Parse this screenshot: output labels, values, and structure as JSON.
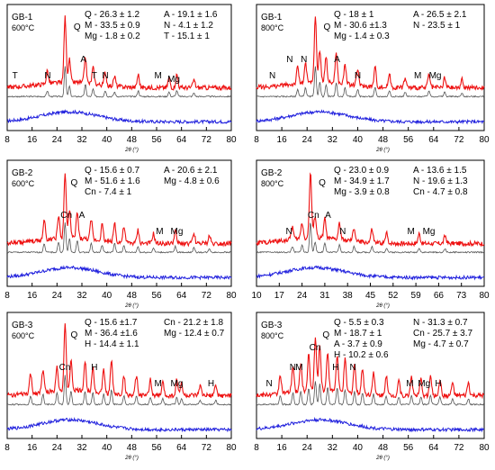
{
  "chart_data": [
    {
      "type": "line",
      "title": "GB-1",
      "subtitle": "600°C",
      "xlabel": "2θ (°)",
      "xticks": [
        8,
        16,
        24,
        32,
        40,
        48,
        56,
        64,
        72,
        80
      ],
      "xlim": [
        8,
        80
      ],
      "composition": [
        "Q - 26.3 ± 1.2",
        "A - 19.1 ± 1.6",
        "M - 33.5 ± 0.9",
        "N - 4.1 ± 1.2",
        "Mg - 1.8 ± 0.2",
        "T - 15.1 ± 1"
      ],
      "annotations": [
        {
          "text": "T",
          "x": 10.5,
          "level": "low"
        },
        {
          "text": "N",
          "x": 21,
          "level": "low"
        },
        {
          "text": "Q",
          "x": 30.5,
          "level": "top"
        },
        {
          "text": "A",
          "x": 32.5,
          "level": "mid"
        },
        {
          "text": "T",
          "x": 36,
          "level": "low"
        },
        {
          "text": "N",
          "x": 39.5,
          "level": "low"
        },
        {
          "text": "M",
          "x": 56.5,
          "level": "low"
        },
        {
          "text": "Mg",
          "x": 61.5,
          "level": "low2"
        }
      ],
      "peaks": [
        [
          20.9,
          0.2
        ],
        [
          26.6,
          1.0
        ],
        [
          28,
          0.35
        ],
        [
          33.1,
          0.4
        ],
        [
          35.6,
          0.25
        ],
        [
          39.5,
          0.2
        ],
        [
          42.5,
          0.15
        ],
        [
          50.1,
          0.2
        ],
        [
          60,
          0.15
        ],
        [
          62.5,
          0.2
        ],
        [
          68,
          0.12
        ]
      ],
      "series": [
        {
          "name": "",
          "color": "#ee1111",
          "values_desc": "calcined sample"
        },
        {
          "name": "",
          "color": "#555555",
          "values_desc": "reference"
        },
        {
          "name": "",
          "color": "#1f1fdd",
          "values_desc": "amorphous"
        }
      ]
    },
    {
      "type": "line",
      "title": "GB-1",
      "subtitle": "800°C",
      "xlabel": "2θ (°)",
      "xticks": [
        8,
        16,
        24,
        32,
        40,
        48,
        56,
        64,
        72,
        80
      ],
      "xlim": [
        8,
        80
      ],
      "composition": [
        "Q - 18 ± 1",
        "A - 26.5 ± 2.1",
        "M - 30.6 ±1.3",
        "N - 23.5 ± 1",
        "Mg - 1.4 ± 0.3"
      ],
      "annotations": [
        {
          "text": "N",
          "x": 13,
          "level": "low"
        },
        {
          "text": "N",
          "x": 18.5,
          "level": "mid"
        },
        {
          "text": "N",
          "x": 23,
          "level": "mid"
        },
        {
          "text": "Q",
          "x": 30.3,
          "level": "top"
        },
        {
          "text": "A",
          "x": 33.5,
          "level": "mid"
        },
        {
          "text": "N",
          "x": 40,
          "level": "low"
        },
        {
          "text": "M",
          "x": 59,
          "level": "low"
        },
        {
          "text": "Mg",
          "x": 64.5,
          "level": "low"
        }
      ],
      "peaks": [
        [
          21,
          0.25
        ],
        [
          23.5,
          0.3
        ],
        [
          26.6,
          1.0
        ],
        [
          28,
          0.5
        ],
        [
          30,
          0.4
        ],
        [
          33.2,
          0.45
        ],
        [
          36,
          0.3
        ],
        [
          40,
          0.25
        ],
        [
          45.5,
          0.3
        ],
        [
          50,
          0.2
        ],
        [
          55,
          0.15
        ],
        [
          62.5,
          0.2
        ],
        [
          67.5,
          0.15
        ],
        [
          73,
          0.12
        ]
      ],
      "series": [
        {
          "name": "",
          "color": "#ee1111",
          "values_desc": "calcined sample"
        },
        {
          "name": "",
          "color": "#555555",
          "values_desc": "reference"
        },
        {
          "name": "",
          "color": "#1f1fdd",
          "values_desc": "amorphous"
        }
      ]
    },
    {
      "type": "line",
      "title": "GB-2",
      "subtitle": "600°C",
      "xlabel": "2θ (°)",
      "xticks": [
        8,
        16,
        24,
        32,
        40,
        48,
        56,
        64,
        72,
        80
      ],
      "xlim": [
        8,
        80
      ],
      "composition": [
        "Q - 15.6 ± 0.7",
        "A - 20.6 ± 2.1",
        "M - 51.6 ± 1.6",
        "Mg - 4.8 ± 0.6",
        "Cn - 7.4 ± 1"
      ],
      "annotations": [
        {
          "text": "Q",
          "x": 29.5,
          "level": "top"
        },
        {
          "text": "Cn",
          "x": 27,
          "level": "mid"
        },
        {
          "text": "A",
          "x": 32,
          "level": "mid"
        },
        {
          "text": "M",
          "x": 57,
          "level": "low"
        },
        {
          "text": "Mg",
          "x": 62.5,
          "level": "low"
        }
      ],
      "peaks": [
        [
          19.9,
          0.3
        ],
        [
          24.5,
          0.35
        ],
        [
          26.6,
          1.0
        ],
        [
          28,
          0.45
        ],
        [
          30.5,
          0.4
        ],
        [
          35,
          0.3
        ],
        [
          38.5,
          0.25
        ],
        [
          42.5,
          0.3
        ],
        [
          45.5,
          0.25
        ],
        [
          50,
          0.2
        ],
        [
          55,
          0.15
        ],
        [
          62,
          0.2
        ],
        [
          68,
          0.15
        ],
        [
          73,
          0.12
        ]
      ],
      "series": [
        {
          "name": "",
          "color": "#ee1111",
          "values_desc": "calcined sample"
        },
        {
          "name": "",
          "color": "#555555",
          "values_desc": "reference"
        },
        {
          "name": "",
          "color": "#1f1fdd",
          "values_desc": "amorphous"
        }
      ]
    },
    {
      "type": "line",
      "title": "GB-2",
      "subtitle": "800°C",
      "xlabel": "2θ (°)",
      "xticks": [
        10,
        17,
        24,
        31,
        38,
        45,
        52,
        59,
        66,
        73,
        80
      ],
      "xlim": [
        10,
        80
      ],
      "composition": [
        "Q - 23.0 ± 0.9",
        "A - 13.6 ± 1.5",
        "M - 34.9 ± 1.7",
        "N - 19.6 ± 1.3",
        "Mg - 3.9 ± 0.8",
        "Cn - 4.7 ± 0.8"
      ],
      "annotations": [
        {
          "text": "Q",
          "x": 30.2,
          "level": "top"
        },
        {
          "text": "Cn",
          "x": 27.5,
          "level": "mid"
        },
        {
          "text": "A",
          "x": 32,
          "level": "mid"
        },
        {
          "text": "N",
          "x": 20,
          "level": "low"
        },
        {
          "text": "N",
          "x": 36.5,
          "level": "low"
        },
        {
          "text": "M",
          "x": 57.5,
          "level": "low"
        },
        {
          "text": "Mg",
          "x": 63,
          "level": "low"
        }
      ],
      "peaks": [
        [
          21,
          0.2
        ],
        [
          24,
          0.25
        ],
        [
          26.6,
          1.0
        ],
        [
          28,
          0.35
        ],
        [
          31,
          0.3
        ],
        [
          35.5,
          0.25
        ],
        [
          40,
          0.2
        ],
        [
          45.5,
          0.2
        ],
        [
          50,
          0.15
        ],
        [
          60,
          0.15
        ],
        [
          68,
          0.12
        ]
      ],
      "series": [
        {
          "name": "",
          "color": "#ee1111",
          "values_desc": "calcined sample"
        },
        {
          "name": "",
          "color": "#555555",
          "values_desc": "reference"
        },
        {
          "name": "",
          "color": "#1f1fdd",
          "values_desc": "amorphous"
        }
      ]
    },
    {
      "type": "line",
      "title": "GB-3",
      "subtitle": "600°C",
      "xlabel": "2θ (°)",
      "xticks": [
        8,
        16,
        24,
        32,
        40,
        48,
        56,
        64,
        72,
        80
      ],
      "xlim": [
        8,
        80
      ],
      "composition": [
        "Q - 15.6 ±1.7",
        "Cn - 21.2 ± 1.8",
        "M - 36.4 ±1.6",
        "Mg - 12.4 ± 0.7",
        "H - 14.4 ± 1.1"
      ],
      "annotations": [
        {
          "text": "Q",
          "x": 29.5,
          "level": "top"
        },
        {
          "text": "Cn",
          "x": 26.5,
          "level": "mid"
        },
        {
          "text": "H",
          "x": 36,
          "level": "mid"
        },
        {
          "text": "M",
          "x": 56.5,
          "level": "low"
        },
        {
          "text": "Mg",
          "x": 62.5,
          "level": "low"
        },
        {
          "text": "H",
          "x": 73.5,
          "level": "low"
        }
      ],
      "peaks": [
        [
          15.5,
          0.3
        ],
        [
          19.5,
          0.35
        ],
        [
          24,
          0.4
        ],
        [
          26.6,
          1.0
        ],
        [
          28.5,
          0.45
        ],
        [
          33,
          0.45
        ],
        [
          35.5,
          0.4
        ],
        [
          39,
          0.35
        ],
        [
          41.5,
          0.5
        ],
        [
          45.5,
          0.3
        ],
        [
          49.5,
          0.3
        ],
        [
          54,
          0.25
        ],
        [
          58,
          0.2
        ],
        [
          62.5,
          0.25
        ],
        [
          64,
          0.2
        ],
        [
          70,
          0.15
        ],
        [
          75,
          0.15
        ]
      ],
      "series": [
        {
          "name": "",
          "color": "#ee1111",
          "values_desc": "calcined sample"
        },
        {
          "name": "",
          "color": "#555555",
          "values_desc": "reference"
        },
        {
          "name": "",
          "color": "#1f1fdd",
          "values_desc": "amorphous"
        }
      ]
    },
    {
      "type": "line",
      "title": "GB-3",
      "subtitle": "800°C",
      "xlabel": "2θ (°)",
      "xticks": [
        8,
        16,
        24,
        32,
        40,
        48,
        56,
        64,
        72,
        80
      ],
      "xlim": [
        8,
        80
      ],
      "composition": [
        "Q - 5.5 ± 0.3",
        "N - 31.3 ± 0.7",
        "M - 18.7 ± 1",
        "Cn - 25.7 ± 3.7",
        "A - 3.7 ± 0.9",
        "Mg - 4.7 ± 0.7",
        "H - 10.2 ± 0.6"
      ],
      "annotations": [
        {
          "text": "N",
          "x": 12,
          "level": "low"
        },
        {
          "text": "N",
          "x": 19.5,
          "level": "mid"
        },
        {
          "text": "M",
          "x": 21.5,
          "level": "mid"
        },
        {
          "text": "Cn",
          "x": 26.5,
          "level": "top2"
        },
        {
          "text": "Q",
          "x": 30,
          "level": "top"
        },
        {
          "text": "H",
          "x": 33,
          "level": "mid"
        },
        {
          "text": "N",
          "x": 38.5,
          "level": "mid"
        },
        {
          "text": "M",
          "x": 56.5,
          "level": "low"
        },
        {
          "text": "Mg",
          "x": 61,
          "level": "low"
        },
        {
          "text": "H",
          "x": 65.5,
          "level": "low"
        }
      ],
      "peaks": [
        [
          15.5,
          0.3
        ],
        [
          19.5,
          0.4
        ],
        [
          22,
          0.45
        ],
        [
          24.5,
          0.55
        ],
        [
          26.6,
          0.8
        ],
        [
          28,
          0.7
        ],
        [
          30.5,
          0.6
        ],
        [
          33.5,
          0.55
        ],
        [
          36,
          0.5
        ],
        [
          39,
          0.45
        ],
        [
          41.5,
          0.4
        ],
        [
          45,
          0.35
        ],
        [
          49,
          0.3
        ],
        [
          53,
          0.25
        ],
        [
          57,
          0.3
        ],
        [
          60,
          0.25
        ],
        [
          63,
          0.3
        ],
        [
          66,
          0.25
        ],
        [
          70,
          0.2
        ],
        [
          75,
          0.2
        ]
      ],
      "series": [
        {
          "name": "",
          "color": "#ee1111",
          "values_desc": "calcined sample"
        },
        {
          "name": "",
          "color": "#555555",
          "values_desc": "reference"
        },
        {
          "name": "",
          "color": "#1f1fdd",
          "values_desc": "amorphous"
        }
      ]
    }
  ]
}
